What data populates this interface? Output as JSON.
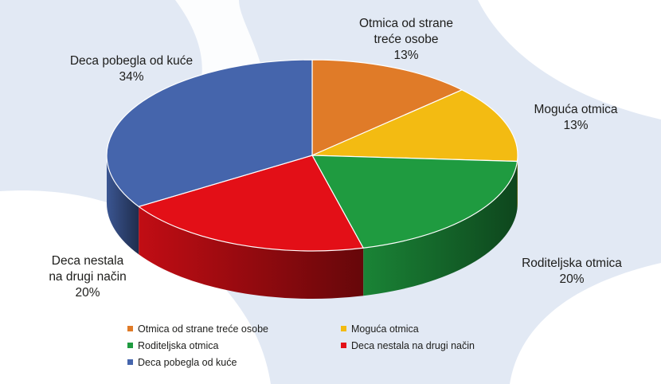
{
  "chart_data": {
    "type": "pie",
    "title": "",
    "slices": [
      {
        "name": "Otmica od strane treće osobe",
        "value": 13,
        "label": "13%",
        "color": "#e07b28"
      },
      {
        "name": "Moguća otmica",
        "value": 13,
        "label": "13%",
        "color": "#f3bb12"
      },
      {
        "name": "Roditeljska otmica",
        "value": 20,
        "label": "20%",
        "color": "#1f9b40"
      },
      {
        "name": "Deca nestala na drugi način",
        "value": 20,
        "label": "20%",
        "color": "#e30f17"
      },
      {
        "name": "Deca pobegla od kuće",
        "value": 34,
        "label": "34%",
        "color": "#4565ac"
      }
    ],
    "slice_labels": [
      [
        "Otmica od strane",
        "treće osobe",
        "13%"
      ],
      [
        "Moguća otmica",
        "13%"
      ],
      [
        "Roditeljska otmica",
        "20%"
      ],
      [
        "Deca nestala",
        "na drugi način",
        "20%"
      ],
      [
        "Deca pobegla od kuće",
        "34%"
      ]
    ],
    "legend": [
      "Otmica od strane treće osobe",
      "Moguća otmica",
      "Roditeljska otmica",
      "Deca nestala na drugi način",
      "Deca pobegla od kuće"
    ],
    "legend_placement": "bottom"
  }
}
